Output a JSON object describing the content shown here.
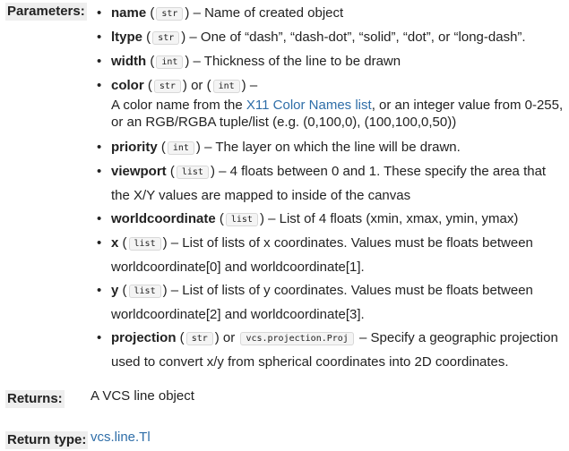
{
  "parameters": {
    "label": "Parameters:",
    "items": [
      {
        "name": "name",
        "type": "str",
        "desc": " – Name of created object"
      },
      {
        "name": "ltype",
        "type": "str",
        "desc": " – One of “dash”, “dash-dot”, “solid”, “dot”, or “long-dash”."
      },
      {
        "name": "width",
        "type": "int",
        "desc": " – Thickness of the line to be drawn"
      },
      {
        "name": "color",
        "type": "str",
        "or": "or",
        "type2": "int",
        "desc": " –",
        "desc_line_pre": "A color name from the ",
        "desc_link": "X11 Color Names list",
        "desc_line_post": ", or an integer value from 0-255, or an RGB/RGBA tuple/list (e.g. (0,100,0), (100,100,0,50))"
      },
      {
        "name": "priority",
        "type": "int",
        "desc": " – The layer on which the line will be drawn."
      },
      {
        "name": "viewport",
        "type": "list",
        "desc": " – 4 floats between 0 and 1. These specify the area that the X/Y values are mapped to inside of the canvas"
      },
      {
        "name": "worldcoordinate",
        "type": "list",
        "desc": " – List of 4 floats (xmin, xmax, ymin, ymax)"
      },
      {
        "name": "x",
        "type": "list",
        "desc": " – List of lists of x coordinates. Values must be floats between worldcoordinate[0] and worldcoordinate[1]."
      },
      {
        "name": "y",
        "type": "list",
        "desc": " – List of lists of y coordinates. Values must be floats between worldcoordinate[2] and worldcoordinate[3]."
      },
      {
        "name": "projection",
        "type": "str",
        "or": "or",
        "type2": "vcs.projection.Proj",
        "desc": " – Specify a geographic projection used to convert x/y from spherical coordinates into 2D coordinates."
      }
    ]
  },
  "returns": {
    "label": "Returns:",
    "value": "A VCS line object"
  },
  "return_type": {
    "label": "Return type:",
    "value": "vcs.line.Tl"
  },
  "colors": {
    "link": "#2f6ea8",
    "label_bg": "#eeeeee",
    "text": "#222222"
  }
}
